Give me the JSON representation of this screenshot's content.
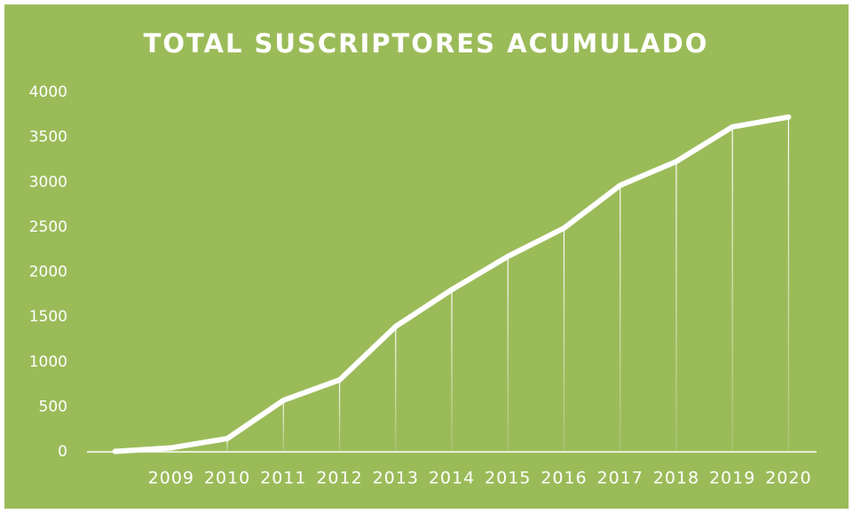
{
  "chart_data": {
    "type": "line",
    "title": "TOTAL SUSCRIPTORES ACUMULADO",
    "categories": [
      null,
      "2009",
      "2010",
      "2011",
      "2012",
      "2013",
      "2014",
      "2015",
      "2016",
      "2017",
      "2018",
      "2019",
      "2020"
    ],
    "values": [
      5,
      45,
      148,
      573,
      800,
      1395,
      1805,
      2175,
      2490,
      2965,
      3230,
      3615,
      3725
    ],
    "color": "#ffffff",
    "background": "#9bbb59",
    "ylim": [
      0,
      4000
    ],
    "yticks": [
      0,
      500,
      1000,
      1500,
      2000,
      2500,
      3000,
      3500,
      4000
    ],
    "drop_lines": true
  }
}
